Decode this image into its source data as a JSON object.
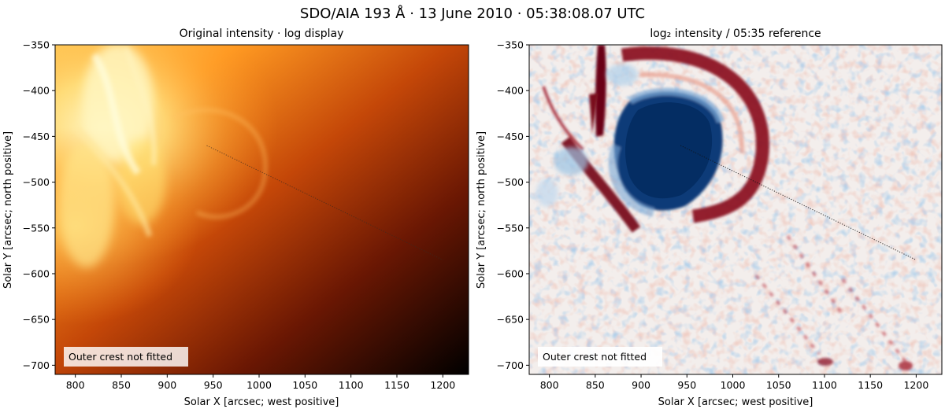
{
  "figure": {
    "suptitle": "SDO/AIA 193 Å · 13 June 2010 · 05:38:08.07 UTC"
  },
  "panels": [
    {
      "title": "Original intensity · log display",
      "xlabel": "Solar X [arcsec; west positive]",
      "ylabel": "Solar Y [arcsec; north positive]",
      "colormap": "afmhot",
      "annotation": "Outer crest not fitted"
    },
    {
      "title": "log₂ intensity / 05:35 reference",
      "xlabel": "Solar X [arcsec; west positive]",
      "ylabel": "Solar Y [arcsec; north positive]",
      "colormap": "RdBu_r",
      "annotation": "Outer crest not fitted"
    }
  ],
  "axes": {
    "xlim": [
      778,
      1228
    ],
    "ylim": [
      -710,
      -350
    ],
    "xticks": [
      800,
      850,
      900,
      950,
      1000,
      1050,
      1100,
      1150,
      1200
    ],
    "yticks": [
      -350,
      -400,
      -450,
      -500,
      -550,
      -600,
      -650,
      -700
    ]
  },
  "profile_line": {
    "start": [
      943,
      -460
    ],
    "end": [
      1200,
      -585
    ]
  }
}
